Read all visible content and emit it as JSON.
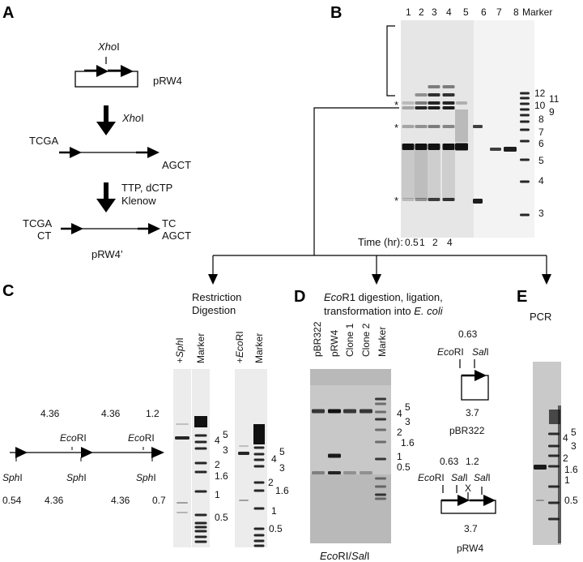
{
  "panelA": {
    "label": "A",
    "xhoI_site": {
      "italic": "Xho",
      "plain": "I"
    },
    "plasmid": "pRW4",
    "step1": {
      "italic": "Xho",
      "plain": "I"
    },
    "end_left": "TCGA",
    "end_right": "AGCT",
    "step2_line1": "TTP, dCTP",
    "step2_line2": "Klenow",
    "fill_left_top": "TCGA",
    "fill_left_bottom": "CT",
    "fill_right_top": "TC",
    "fill_right_bottom": "AGCT",
    "product": "pRW4’"
  },
  "panelB": {
    "label": "B",
    "lanes": [
      "1",
      "2",
      "3",
      "4",
      "5",
      "6",
      "7",
      "8",
      "Marker"
    ],
    "sizes": [
      "12",
      "11",
      "10",
      "9",
      "8",
      "7",
      "6",
      "5",
      "4",
      "3"
    ],
    "asterisk": "*",
    "time_label": "Time (hr):",
    "times": [
      "0.5",
      "1",
      "2",
      "4"
    ]
  },
  "panelC": {
    "label": "C",
    "title_line1": "Restriction",
    "title_line2": "Digestion",
    "map_top": [
      "4.36",
      "4.36",
      "1.2"
    ],
    "ecori": {
      "italic": "Eco",
      "plain": "RI"
    },
    "sphi": {
      "italic": "Sph",
      "plain": "I"
    },
    "map_bottom": [
      "0.54",
      "4.36",
      "4.36",
      "0.7"
    ],
    "gel1_lanes": {
      "plus": "+",
      "enzyme_italic": "Sph",
      "enzyme_plain": "I",
      "marker": "Marker"
    },
    "gel2_lanes": {
      "plus": "+",
      "enzyme_italic": "Eco",
      "enzyme_plain": "RI",
      "marker": "Marker"
    },
    "gel1_sizes": [
      "5",
      "4",
      "3",
      "2",
      "1.6",
      "1",
      "0.5"
    ],
    "gel2_sizes": [
      "5",
      "4",
      "3",
      "2",
      "1.6",
      "1",
      "0.5"
    ]
  },
  "panelD": {
    "label": "D",
    "title1_italic": "Eco",
    "title1_plain": "R1 digestion, ligation,",
    "title2_plain": "transformation into ",
    "title2_italic": "E. coli",
    "lanes": [
      "pBR322",
      "pRW4",
      "Clone 1",
      "Clone 2",
      "Marker"
    ],
    "sizes": [
      "5",
      "4",
      "3",
      "2",
      "1.6",
      "1",
      "0.5"
    ],
    "footer": {
      "a_italic": "Eco",
      "a_plain": "RI/",
      "b_italic": "Sal",
      "b_plain": "I"
    },
    "map1": {
      "dist": "0.63",
      "ecori_italic": "Eco",
      "ecori_plain": "RI",
      "sali_italic": "Sal",
      "sali_plain": "I",
      "size": "3.7",
      "name": "pBR322"
    },
    "map2": {
      "dist1": "0.63",
      "dist2": "1.2",
      "ecori_italic": "Eco",
      "ecori_plain": "RI",
      "sali_italic": "Sal",
      "sali_plain": "I",
      "x": "X",
      "size": "3.7",
      "name": "pRW4"
    }
  },
  "panelE": {
    "label": "E",
    "title": "PCR",
    "sizes": [
      "5",
      "4",
      "3",
      "2",
      "1.6",
      "1",
      "0.5"
    ]
  }
}
